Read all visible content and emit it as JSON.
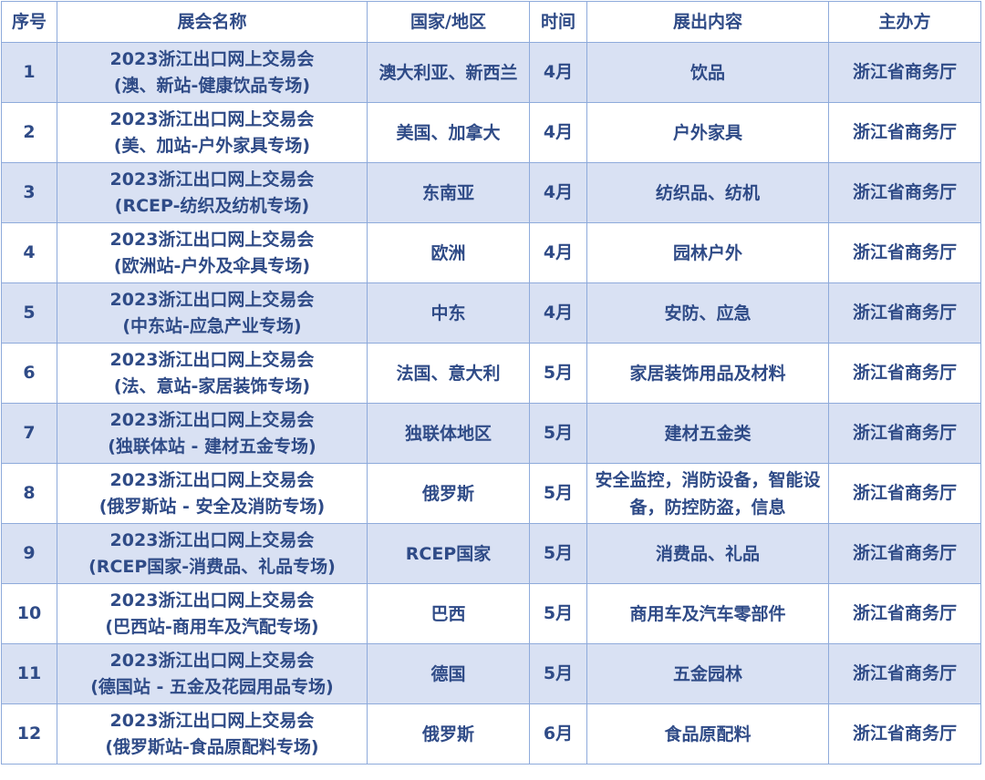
{
  "headers": [
    "序号",
    "展会名称",
    "国家/地区",
    "时间",
    "展出内容",
    "主办方"
  ],
  "rows": [
    {
      "no": "1",
      "name1": "2023浙江出口网上交易会",
      "name2": "(澳、新站-健康饮品专场)",
      "region": "澳大利亚、新西兰",
      "time": "4月",
      "content": "饮品",
      "host": "浙江省商务厅"
    },
    {
      "no": "2",
      "name1": "2023浙江出口网上交易会",
      "name2": "(美、加站-户外家具专场)",
      "region": "美国、加拿大",
      "time": "4月",
      "content": "户外家具",
      "host": "浙江省商务厅"
    },
    {
      "no": "3",
      "name1": "2023浙江出口网上交易会",
      "name2": "(RCEP-纺织及纺机专场)",
      "region": "东南亚",
      "time": "4月",
      "content": "纺织品、纺机",
      "host": "浙江省商务厅"
    },
    {
      "no": "4",
      "name1": "2023浙江出口网上交易会",
      "name2": "(欧洲站-户外及伞具专场)",
      "region": "欧洲",
      "time": "4月",
      "content": "园林户外",
      "host": "浙江省商务厅"
    },
    {
      "no": "5",
      "name1": "2023浙江出口网上交易会",
      "name2": "(中东站-应急产业专场)",
      "region": "中东",
      "time": "4月",
      "content": "安防、应急",
      "host": "浙江省商务厅"
    },
    {
      "no": "6",
      "name1": "2023浙江出口网上交易会",
      "name2": "(法、意站-家居装饰专场)",
      "region": "法国、意大利",
      "time": "5月",
      "content": "家居装饰用品及材料",
      "host": "浙江省商务厅"
    },
    {
      "no": "7",
      "name1": "2023浙江出口网上交易会",
      "name2": "(独联体站 - 建材五金专场)",
      "region": "独联体地区",
      "time": "5月",
      "content": "建材五金类",
      "host": "浙江省商务厅"
    },
    {
      "no": "8",
      "name1": "2023浙江出口网上交易会",
      "name2": "(俄罗斯站 - 安全及消防专场)",
      "region": "俄罗斯",
      "time": "5月",
      "content": "安全监控，消防设备，智能设备，防控防盗，信息",
      "host": "浙江省商务厅"
    },
    {
      "no": "9",
      "name1": "2023浙江出口网上交易会",
      "name2": "(RCEP国家-消费品、礼品专场)",
      "region": "RCEP国家",
      "time": "5月",
      "content": "消费品、礼品",
      "host": "浙江省商务厅"
    },
    {
      "no": "10",
      "name1": "2023浙江出口网上交易会",
      "name2": "(巴西站-商用车及汽配专场)",
      "region": "巴西",
      "time": "5月",
      "content": "商用车及汽车零部件",
      "host": "浙江省商务厅"
    },
    {
      "no": "11",
      "name1": "2023浙江出口网上交易会",
      "name2": "(德国站 - 五金及花园用品专场)",
      "region": "德国",
      "time": "5月",
      "content": "五金园林",
      "host": "浙江省商务厅"
    },
    {
      "no": "12",
      "name1": "2023浙江出口网上交易会",
      "name2": "(俄罗斯站-食品原配料专场)",
      "region": "俄罗斯",
      "time": "6月",
      "content": "食品原配料",
      "host": "浙江省商务厅"
    }
  ]
}
